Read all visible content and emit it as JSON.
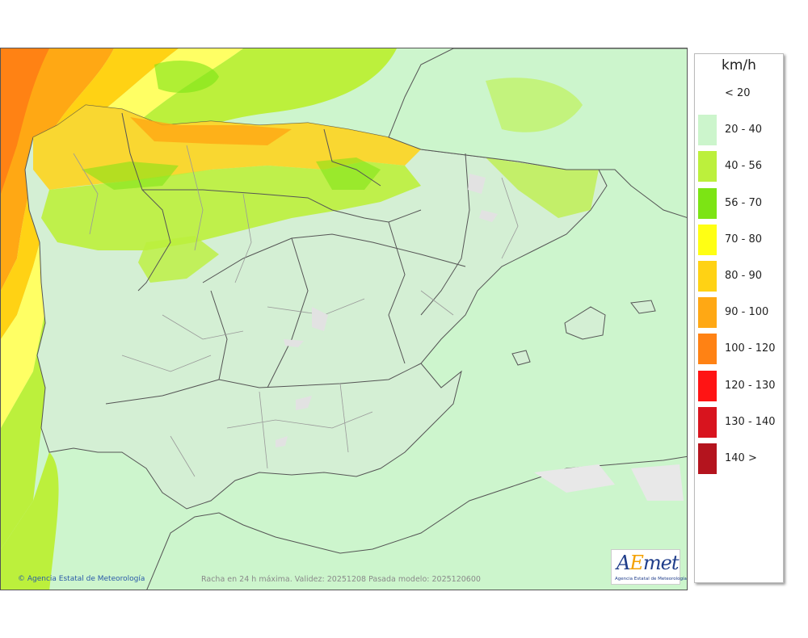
{
  "map": {
    "copyright": "Agencia Estatal de Meteorología",
    "caption": "Racha en 24 h máxima. Validez: 20251208 Pasada modelo: 2025120600",
    "logo_text": "AEmet",
    "logo_sub": "Agencia Estatal de Meteorología"
  },
  "legend": {
    "unit": "km/h",
    "items": [
      {
        "label": "< 20",
        "color": "#ffffff"
      },
      {
        "label": "20 - 40",
        "color": "#ccf5cc"
      },
      {
        "label": "40 - 56",
        "color": "#bcf03c"
      },
      {
        "label": "56 - 70",
        "color": "#7ce414"
      },
      {
        "label": "70 - 80",
        "color": "#ffff14"
      },
      {
        "label": "80 - 90",
        "color": "#ffd214"
      },
      {
        "label": "90 - 100",
        "color": "#ffa814"
      },
      {
        "label": "100 - 120",
        "color": "#ff8214"
      },
      {
        "label": "120 - 130",
        "color": "#ff1414"
      },
      {
        "label": "130 - 140",
        "color": "#d8141e"
      },
      {
        "label": "140 >",
        "color": "#b4141e"
      }
    ]
  }
}
